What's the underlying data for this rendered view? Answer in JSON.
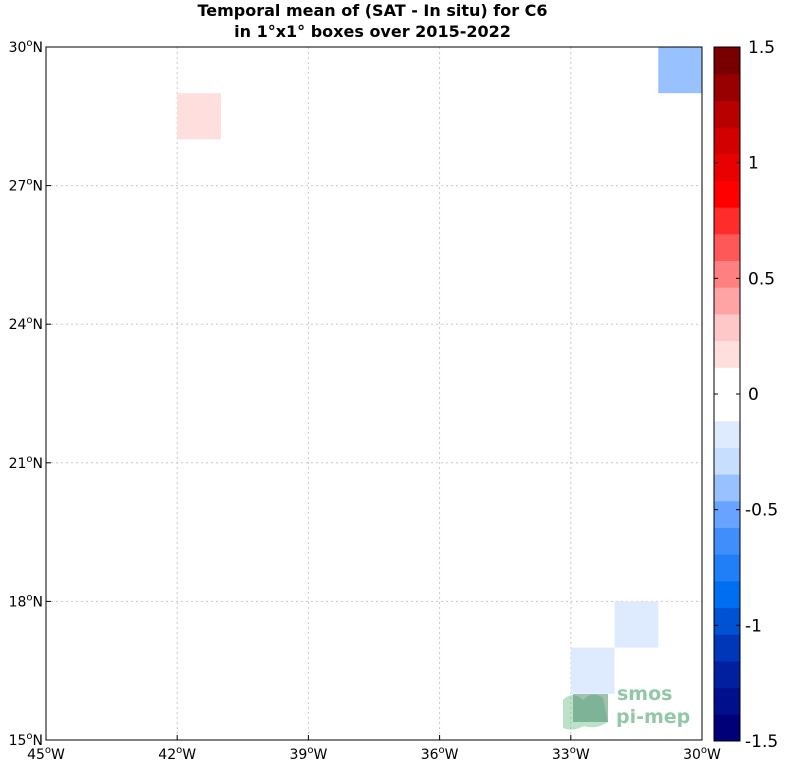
{
  "title_line1": "Temporal mean of (SAT - In situ) for C6",
  "title_line2": "in 1°x1° boxes over 2015-2022",
  "map": {
    "lon_range": [
      -45,
      -30
    ],
    "lat_range": [
      15,
      30
    ],
    "x_ticks": [
      {
        "value": -45,
        "deg": "45",
        "hemi": "W"
      },
      {
        "value": -42,
        "deg": "42",
        "hemi": "W"
      },
      {
        "value": -39,
        "deg": "39",
        "hemi": "W"
      },
      {
        "value": -36,
        "deg": "36",
        "hemi": "W"
      },
      {
        "value": -33,
        "deg": "33",
        "hemi": "W"
      },
      {
        "value": -30,
        "deg": "30",
        "hemi": "W"
      }
    ],
    "y_ticks": [
      {
        "value": 30,
        "deg": "30",
        "hemi": "N"
      },
      {
        "value": 27,
        "deg": "27",
        "hemi": "N"
      },
      {
        "value": 24,
        "deg": "24",
        "hemi": "N"
      },
      {
        "value": 21,
        "deg": "21",
        "hemi": "N"
      },
      {
        "value": 18,
        "deg": "18",
        "hemi": "N"
      },
      {
        "value": 15,
        "deg": "15",
        "hemi": "N"
      }
    ],
    "grid": "dotted"
  },
  "chart_data": {
    "type": "heatmap",
    "cells": [
      {
        "lon": [
          -42,
          -41
        ],
        "lat": [
          28,
          29
        ],
        "value": 0.2
      },
      {
        "lon": [
          -31,
          -30
        ],
        "lat": [
          29,
          30
        ],
        "value": -0.4
      },
      {
        "lon": [
          -32,
          -31
        ],
        "lat": [
          17,
          18
        ],
        "value": -0.15
      },
      {
        "lon": [
          -33,
          -32
        ],
        "lat": [
          16,
          17
        ],
        "value": -0.15
      }
    ],
    "colorbar": {
      "range": [
        -1.5,
        1.5
      ],
      "levels": 26,
      "tick_values": [
        1.5,
        1,
        0.5,
        0,
        -0.5,
        -1,
        -1.5
      ],
      "tick_labels": [
        "1.5",
        "1",
        "0.5",
        "0",
        "-0.5",
        "-1",
        "-1.5"
      ]
    }
  },
  "logo": {
    "line1": "smos",
    "line2": "pi-mep"
  }
}
